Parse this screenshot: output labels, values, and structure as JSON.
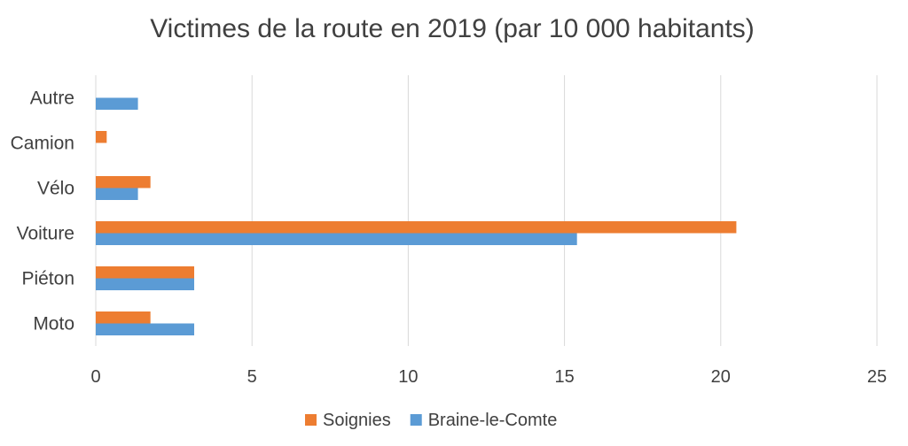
{
  "chart_data": {
    "type": "bar",
    "orientation": "horizontal",
    "title": "Victimes de la route en 2019 (par 10 000 habitants)",
    "xlabel": "",
    "ylabel": "",
    "categories": [
      "Moto",
      "Piéton",
      "Voiture",
      "Vélo",
      "Camion",
      "Autre"
    ],
    "series": [
      {
        "name": "Soignies",
        "color": "#ED7D31",
        "values": [
          1.75,
          3.15,
          20.5,
          1.75,
          0.35,
          0
        ]
      },
      {
        "name": "Braine-le-Comte",
        "color": "#5B9BD5",
        "values": [
          3.15,
          3.15,
          15.4,
          1.35,
          0,
          1.35
        ]
      }
    ],
    "xlim": [
      0,
      25
    ],
    "xticks": [
      "0",
      "5",
      "10",
      "15",
      "20",
      "25"
    ],
    "grid": true,
    "legend_position": "bottom"
  }
}
